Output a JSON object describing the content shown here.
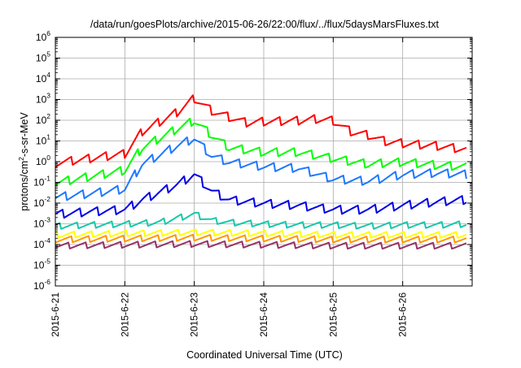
{
  "chart_data": {
    "type": "line",
    "title": "/data/run/goesPlots/archive/2015-06-26/22:00/flux/../flux/5daysMarsFluxes.txt",
    "xlabel": "Coordinated Universal Time (UTC)",
    "ylabel_parts": {
      "base": "protons/cm",
      "exp": "2",
      "rest": "-s-sr-MeV"
    },
    "x_axis": {
      "unit": "day",
      "range": [
        "2015-06-21",
        "2015-06-27"
      ],
      "tick_dates": [
        "2015-06-21",
        "2015-06-22",
        "2015-06-23",
        "2015-06-24",
        "2015-06-25",
        "2015-06-26"
      ],
      "tick_labels": [
        "2015-6-21",
        "2015-6-22",
        "2015-6-23",
        "2015-6-24",
        "2015-6-25",
        "2015-6-26"
      ]
    },
    "y_axis": {
      "scale": "log",
      "range": [
        1e-06,
        1000000.0
      ],
      "tick_bases": [
        "10",
        "10",
        "10",
        "10",
        "10",
        "10",
        "10",
        "10",
        "10",
        "10",
        "10",
        "10",
        "10"
      ],
      "tick_exponents": [
        "-6",
        "-5",
        "-4",
        "-3",
        "-2",
        "-1",
        "0",
        "1",
        "2",
        "3",
        "4",
        "5",
        "6"
      ]
    },
    "grid": true,
    "legend": "none",
    "series": [
      {
        "color": "#ff0000",
        "x": [
          "2015-06-21T00:00",
          "2015-06-21T12:00",
          "2015-06-22T00:00",
          "2015-06-22T06:00",
          "2015-06-22T18:00",
          "2015-06-23T00:00",
          "2015-06-23T06:00",
          "2015-06-23T12:00",
          "2015-06-23T18:00",
          "2015-06-24T00:00",
          "2015-06-24T12:00",
          "2015-06-24T18:00",
          "2015-06-25T00:00",
          "2015-06-25T06:00",
          "2015-06-25T12:00",
          "2015-06-25T18:00",
          "2015-06-26T00:00",
          "2015-06-26T12:00",
          "2015-06-26T22:00"
        ],
        "y": [
          0.9,
          1.5,
          2.5,
          30,
          250,
          1200,
          300,
          150,
          80,
          90,
          100,
          120,
          100,
          30,
          20,
          10,
          8,
          6,
          4
        ]
      },
      {
        "color": "#00ff00",
        "x": [
          "2015-06-21T00:00",
          "2015-06-21T12:00",
          "2015-06-22T00:00",
          "2015-06-22T06:00",
          "2015-06-22T18:00",
          "2015-06-23T00:00",
          "2015-06-23T06:00",
          "2015-06-23T12:00",
          "2015-06-24T00:00",
          "2015-06-24T12:00",
          "2015-06-25T00:00",
          "2015-06-25T12:00",
          "2015-06-26T00:00",
          "2015-06-26T12:00",
          "2015-06-26T22:00"
        ],
        "y": [
          0.1,
          0.2,
          0.4,
          5,
          40,
          100,
          20,
          5,
          3,
          3,
          1.5,
          0.8,
          1,
          0.7,
          0.6
        ]
      },
      {
        "color": "#1e78ff",
        "x": [
          "2015-06-21T00:00",
          "2015-06-21T12:00",
          "2015-06-22T00:00",
          "2015-06-22T06:00",
          "2015-06-22T18:00",
          "2015-06-23T00:00",
          "2015-06-23T06:00",
          "2015-06-23T12:00",
          "2015-06-24T00:00",
          "2015-06-24T12:00",
          "2015-06-25T00:00",
          "2015-06-25T12:00",
          "2015-06-26T00:00",
          "2015-06-26T12:00",
          "2015-06-26T22:00"
        ],
        "y": [
          0.02,
          0.03,
          0.05,
          0.8,
          6,
          14,
          2,
          1,
          0.6,
          0.5,
          0.15,
          0.12,
          0.25,
          0.3,
          0.25
        ]
      },
      {
        "color": "#0000e6",
        "x": [
          "2015-06-21T00:00",
          "2015-06-21T12:00",
          "2015-06-22T00:00",
          "2015-06-22T06:00",
          "2015-06-22T18:00",
          "2015-06-23T00:00",
          "2015-06-23T06:00",
          "2015-06-23T12:00",
          "2015-06-24T00:00",
          "2015-06-24T12:00",
          "2015-06-25T00:00",
          "2015-06-25T12:00",
          "2015-06-26T00:00",
          "2015-06-26T12:00",
          "2015-06-26T22:00"
        ],
        "y": [
          0.003,
          0.004,
          0.005,
          0.015,
          0.08,
          0.25,
          0.04,
          0.015,
          0.01,
          0.008,
          0.005,
          0.005,
          0.008,
          0.012,
          0.015
        ]
      },
      {
        "color": "#19c8aa",
        "x": [
          "2015-06-21T00:00",
          "2015-06-21T12:00",
          "2015-06-22T00:00",
          "2015-06-22T12:00",
          "2015-06-23T00:00",
          "2015-06-23T06:00",
          "2015-06-23T12:00",
          "2015-06-24T00:00",
          "2015-06-24T12:00",
          "2015-06-25T00:00",
          "2015-06-25T12:00",
          "2015-06-26T00:00",
          "2015-06-26T12:00",
          "2015-06-26T22:00"
        ],
        "y": [
          0.0008,
          0.0009,
          0.001,
          0.0012,
          0.003,
          0.0015,
          0.0012,
          0.001,
          0.0009,
          0.0009,
          0.0008,
          0.0009,
          0.0009,
          0.001
        ]
      },
      {
        "color": "#ffff00",
        "x": [
          "2015-06-21T00:00",
          "2015-06-22T00:00",
          "2015-06-23T00:00",
          "2015-06-24T00:00",
          "2015-06-25T00:00",
          "2015-06-26T00:00",
          "2015-06-26T22:00"
        ],
        "y": [
          0.0003,
          0.00035,
          0.0004,
          0.00035,
          0.0003,
          0.0003,
          0.0003
        ]
      },
      {
        "color": "#ff9600",
        "x": [
          "2015-06-21T00:00",
          "2015-06-22T00:00",
          "2015-06-23T00:00",
          "2015-06-24T00:00",
          "2015-06-25T00:00",
          "2015-06-26T00:00",
          "2015-06-26T22:00"
        ],
        "y": [
          0.00018,
          0.0002,
          0.00022,
          0.0002,
          0.00018,
          0.00018,
          0.00018
        ]
      },
      {
        "color": "#963264",
        "x": [
          "2015-06-21T00:00",
          "2015-06-22T00:00",
          "2015-06-23T00:00",
          "2015-06-24T00:00",
          "2015-06-25T00:00",
          "2015-06-26T00:00",
          "2015-06-26T22:00"
        ],
        "y": [
          9e-05,
          0.0001,
          0.00011,
          0.0001,
          9e-05,
          9e-05,
          9e-05
        ]
      }
    ]
  }
}
